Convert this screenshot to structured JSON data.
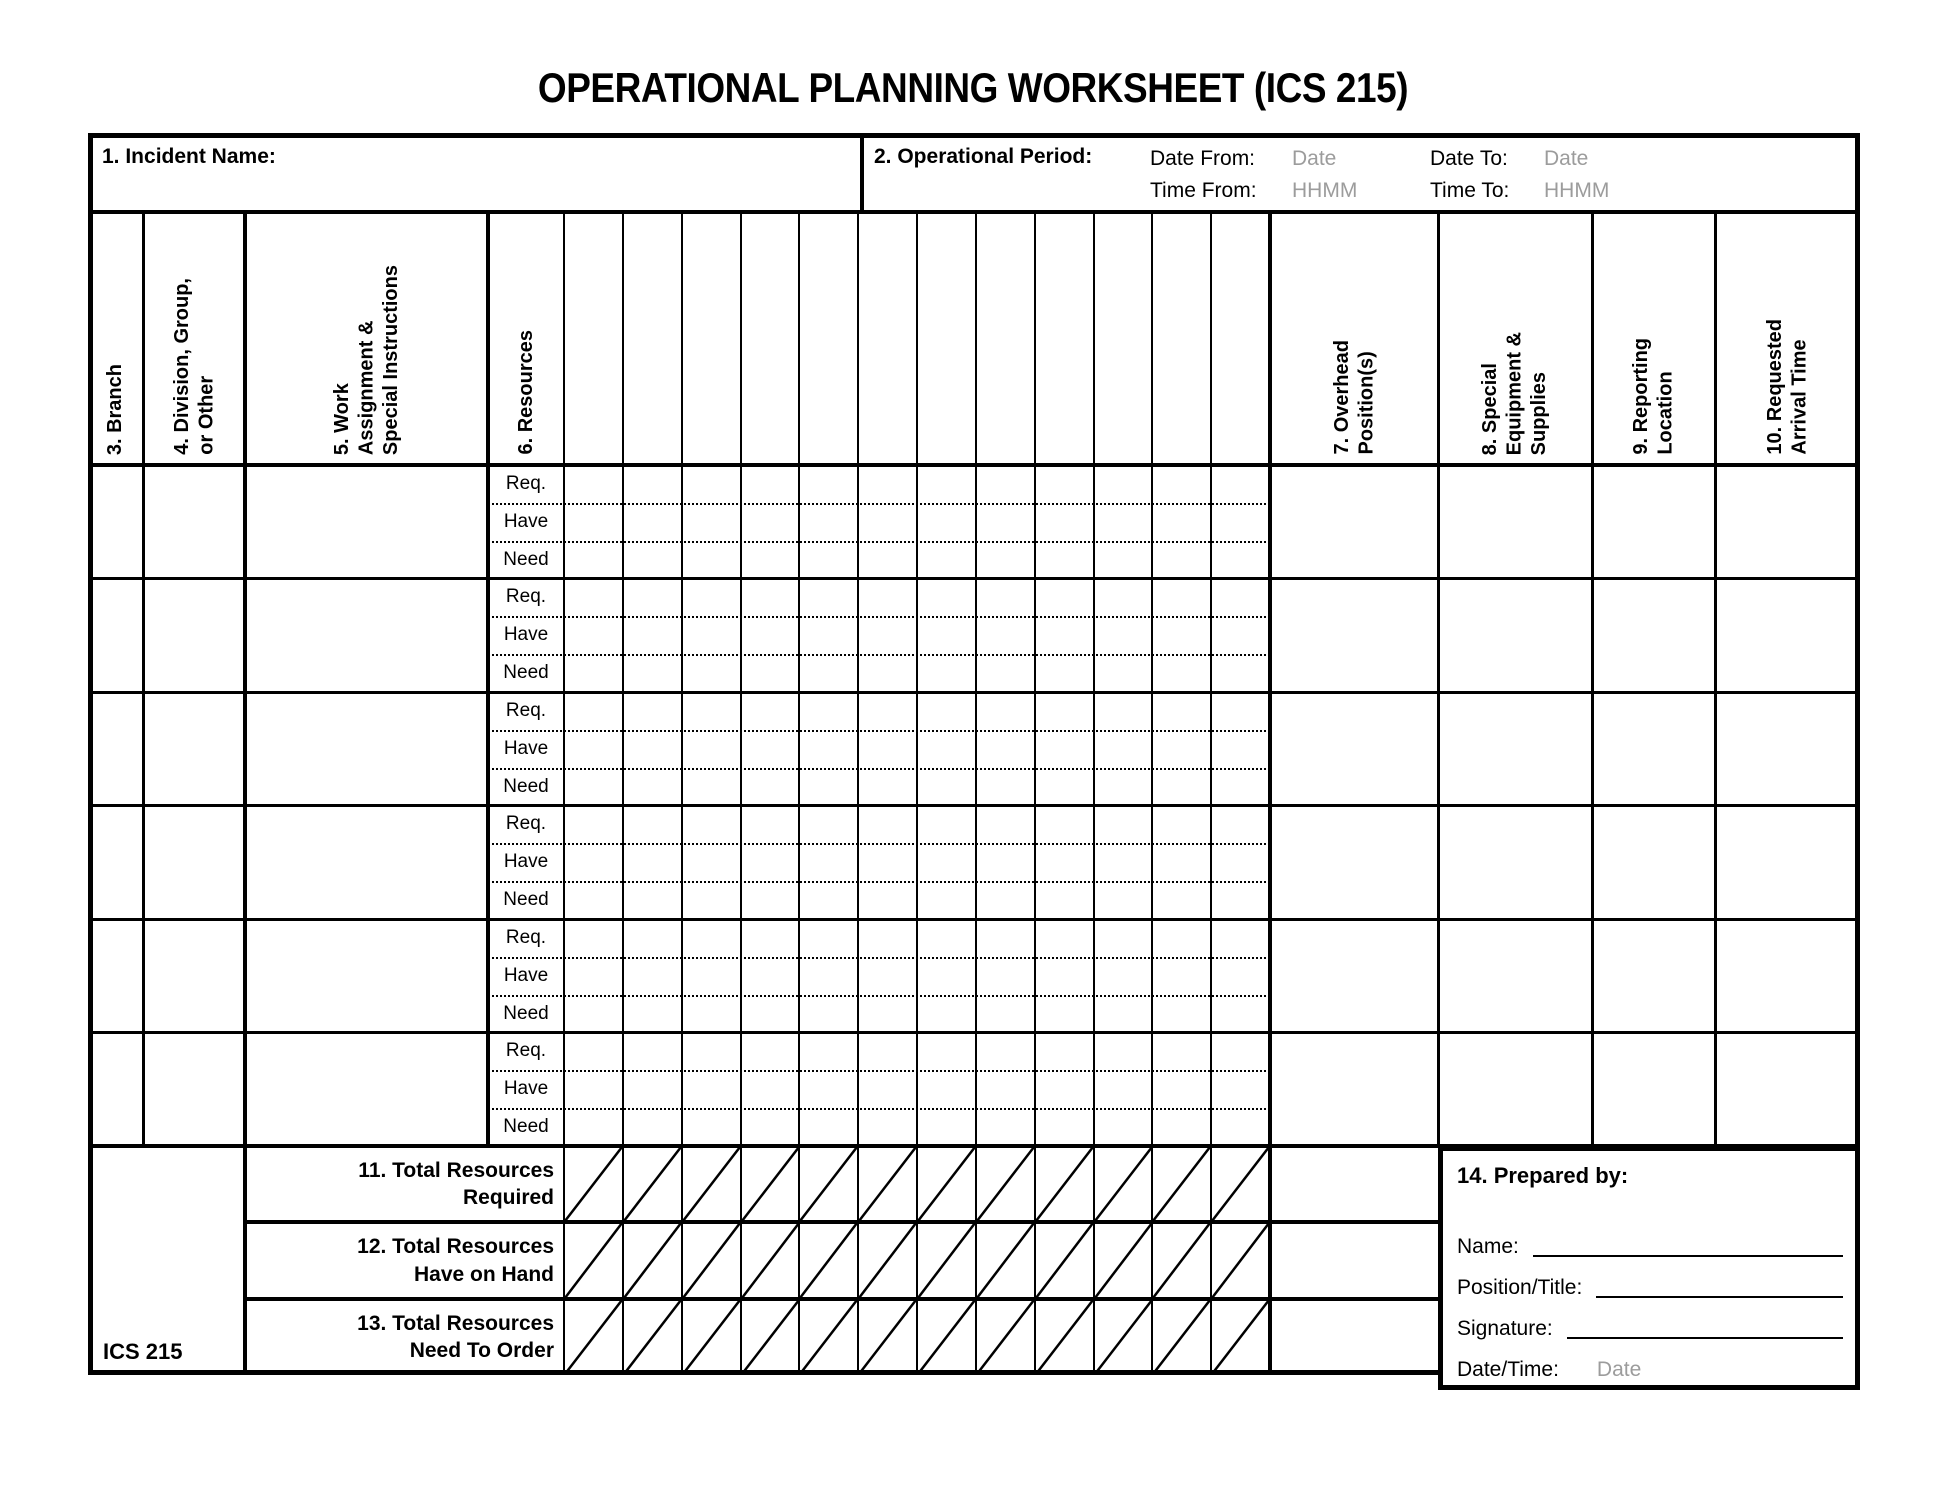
{
  "title": "OPERATIONAL PLANNING WORKSHEET (ICS 215)",
  "colors": {
    "line": "#000000",
    "background": "#ffffff",
    "placeholder_text": "#9c9c9c"
  },
  "incident": {
    "label": "1. Incident Name:"
  },
  "operational_period": {
    "label": "2. Operational Period:",
    "date_from_label": "Date From:",
    "date_from_placeholder": "Date",
    "date_to_label": "Date To:",
    "date_to_placeholder": "Date",
    "time_from_label": "Time From:",
    "time_from_placeholder": "HHMM",
    "time_to_label": "Time To:",
    "time_to_placeholder": "HHMM"
  },
  "columns": {
    "branch": "3. Branch",
    "division": [
      "4. Division, Group,",
      "or Other"
    ],
    "work": [
      "5. Work",
      "Assignment &",
      "Special Instructions"
    ],
    "resources": "6. Resources",
    "overhead": [
      "7. Overhead",
      "Position(s)"
    ],
    "special": [
      "8. Special",
      "Equipment &",
      "Supplies"
    ],
    "reporting": [
      "9. Reporting",
      "Location"
    ],
    "requested": [
      "10. Requested",
      "Arrival Time"
    ]
  },
  "body": {
    "row_labels": [
      "Req.",
      "Have",
      "Need"
    ],
    "group_count": 6,
    "resource_column_count": 12
  },
  "totals": {
    "required": [
      "11. Total Resources",
      "Required"
    ],
    "have": [
      "12. Total Resources",
      "Have on Hand"
    ],
    "need": [
      "13. Total Resources",
      "Need To Order"
    ]
  },
  "footer": {
    "form_id": "ICS 215"
  },
  "prepared_by": {
    "label": "14. Prepared by:",
    "name_label": "Name:",
    "position_label": "Position/Title:",
    "signature_label": "Signature:",
    "datetime_label": "Date/Time:",
    "datetime_placeholder": "Date"
  }
}
